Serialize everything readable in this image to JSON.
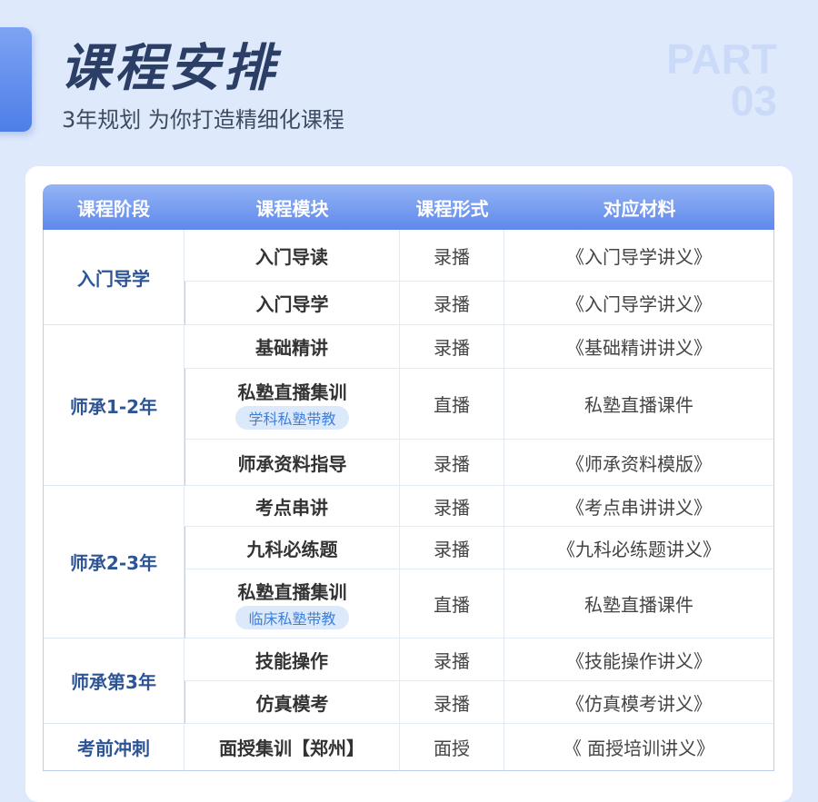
{
  "header": {
    "title": "课程安排",
    "subtitle": "3年规划 为你打造精细化课程",
    "part_label": "PART",
    "part_number": "03"
  },
  "table": {
    "columns": [
      "课程阶段",
      "课程模块",
      "课程形式",
      "对应材料"
    ],
    "stages": [
      {
        "stage": "入门导学",
        "rows": [
          {
            "module": "入门导读",
            "format": "录播",
            "material": "《入门导学讲义》"
          },
          {
            "module": "入门导学",
            "format": "录播",
            "material": "《入门导学讲义》"
          }
        ]
      },
      {
        "stage": "师承1-2年",
        "rows": [
          {
            "module": "基础精讲",
            "format": "录播",
            "material": "《基础精讲讲义》"
          },
          {
            "module": "私塾直播集训",
            "badge": "学科私塾带教",
            "format": "直播",
            "material": "私塾直播课件"
          },
          {
            "module": "师承资料指导",
            "format": "录播",
            "material": "《师承资料模版》"
          }
        ]
      },
      {
        "stage": "师承2-3年",
        "rows": [
          {
            "module": "考点串讲",
            "format": "录播",
            "material": "《考点串讲讲义》"
          },
          {
            "module": "九科必练题",
            "format": "录播",
            "material": "《九科必练题讲义》"
          },
          {
            "module": "私塾直播集训",
            "badge": "临床私塾带教",
            "format": "直播",
            "material": "私塾直播课件"
          }
        ]
      },
      {
        "stage": "师承第3年",
        "rows": [
          {
            "module": "技能操作",
            "format": "录播",
            "material": "《技能操作讲义》"
          },
          {
            "module": "仿真模考",
            "format": "录播",
            "material": "《仿真模考讲义》"
          }
        ]
      },
      {
        "stage": "考前冲刺",
        "rows": [
          {
            "module": "面授集训【郑州】",
            "format": "面授",
            "material": "《 面授培训讲义》"
          }
        ]
      }
    ]
  }
}
